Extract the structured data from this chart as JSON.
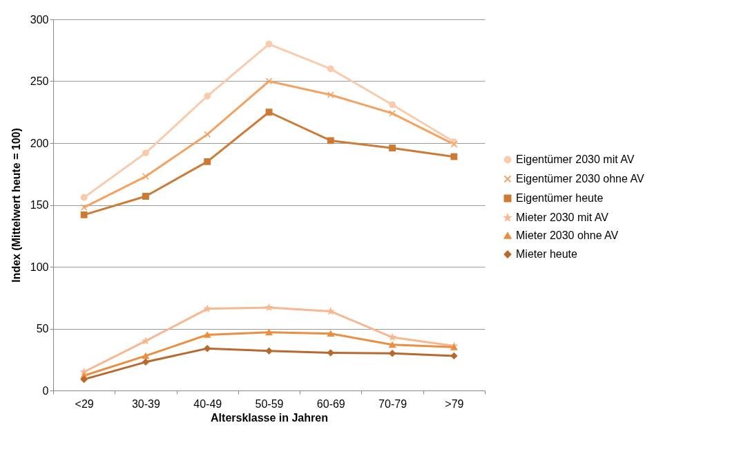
{
  "chart_data": {
    "type": "line",
    "xlabel": "Altersklasse in Jahren",
    "ylabel": "Index (Mittelwert heute = 100)",
    "categories": [
      "<29",
      "30-39",
      "40-49",
      "50-59",
      "60-69",
      "70-79",
      ">79"
    ],
    "ylim": [
      0,
      300
    ],
    "yticks": [
      0,
      50,
      100,
      150,
      200,
      250,
      300
    ],
    "grid": "y",
    "legend": "right",
    "series": [
      {
        "name": "Eigentümer 2030 mit AV",
        "color": "#f8cbad",
        "marker": "circle",
        "values": [
          156,
          192,
          238,
          280,
          260,
          231,
          201
        ]
      },
      {
        "name": "Eigentümer 2030 ohne AV",
        "color": "#f4a262",
        "marker": "cross",
        "values": [
          148,
          173,
          207,
          250,
          239,
          224,
          199
        ]
      },
      {
        "name": "Eigentümer heute",
        "color": "#cd7a35",
        "marker": "square",
        "values": [
          142,
          157,
          185,
          225,
          202,
          196,
          189
        ]
      },
      {
        "name": "Mieter 2030 mit AV",
        "color": "#f7b791",
        "marker": "star",
        "values": [
          15,
          40,
          66,
          67,
          64,
          43,
          36
        ]
      },
      {
        "name": "Mieter 2030 ohne AV",
        "color": "#ed8d3f",
        "marker": "triangle",
        "values": [
          12,
          28,
          45,
          47,
          46,
          37,
          35
        ]
      },
      {
        "name": "Mieter heute",
        "color": "#b8692f",
        "marker": "diamond",
        "values": [
          9,
          23,
          34,
          32,
          30.5,
          30,
          28
        ]
      }
    ]
  }
}
